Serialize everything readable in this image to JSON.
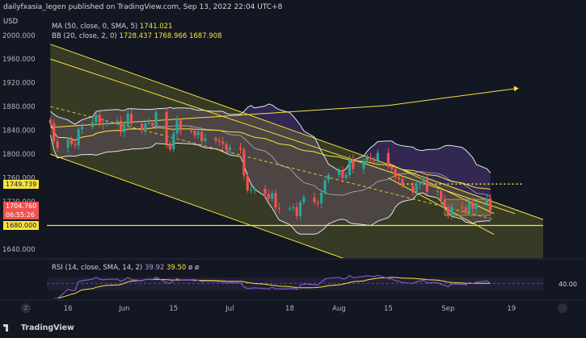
{
  "header": {
    "publisher_line": "dailyfxasia_legen published on TradingView.com, Sep 13, 2022 22:04 UTC+8",
    "currency": "USD"
  },
  "legends": {
    "ma": {
      "label": "MA (50, close, 0, SMA, 5)",
      "value": "1741.021"
    },
    "bb": {
      "label": "BB (20, close, 2, 0)",
      "values": [
        "1728.437",
        "1768.966",
        "1687.908"
      ]
    },
    "rsi": {
      "label": "RSI (14, close, SMA, 14, 2)",
      "values": [
        "39.92",
        "39.50",
        "ø",
        "ø"
      ]
    }
  },
  "price_tags": {
    "resistance": "1749.739",
    "current": "1704.760",
    "countdown": "06:55:26",
    "support": "1680.000",
    "rsi_level": "40.00"
  },
  "footer": {
    "brand": "TradingView",
    "z_button": "Z"
  },
  "colors": {
    "background": "#131722",
    "up": "#26a69a",
    "down": "#ef5350",
    "ma": "#f7e33f",
    "bb": "#e0e3eb",
    "bb_fill": "#5b3f8c",
    "channel": "#f7e33f",
    "rsi_line": "#7e57c2"
  },
  "chart_data": {
    "type": "line",
    "title": "",
    "xlabel": "",
    "ylabel": "USD",
    "ylim": [
      1625,
      2035
    ],
    "y_ticks": [
      1640,
      1680,
      1720,
      1760,
      1800,
      1840,
      1880,
      1920,
      1960,
      2000
    ],
    "y_tick_labels": [
      "1640.000",
      "1680.000",
      "1720.000",
      "1760.000",
      "1800.000",
      "1840.000",
      "1880.000",
      "1920.000",
      "1960.000",
      "2000.000"
    ],
    "x_ticks": [
      {
        "label": "16",
        "date": "2022-05-16"
      },
      {
        "label": "Jun",
        "date": "2022-06-01"
      },
      {
        "label": "15",
        "date": "2022-06-15"
      },
      {
        "label": "Jul",
        "date": "2022-07-01"
      },
      {
        "label": "18",
        "date": "2022-07-18"
      },
      {
        "label": "Aug",
        "date": "2022-08-01"
      },
      {
        "label": "15",
        "date": "2022-08-15"
      },
      {
        "label": "Sep",
        "date": "2022-09-01"
      },
      {
        "label": "19",
        "date": "2022-09-19"
      }
    ],
    "xlim": [
      "2022-05-10",
      "2022-09-28"
    ],
    "close_series": [
      [
        "2022-05-11",
        1852
      ],
      [
        "2022-05-12",
        1822
      ],
      [
        "2022-05-13",
        1811
      ],
      [
        "2022-05-16",
        1824
      ],
      [
        "2022-05-17",
        1817
      ],
      [
        "2022-05-18",
        1815
      ],
      [
        "2022-05-19",
        1842
      ],
      [
        "2022-05-20",
        1846
      ],
      [
        "2022-05-23",
        1854
      ],
      [
        "2022-05-24",
        1866
      ],
      [
        "2022-05-25",
        1853
      ],
      [
        "2022-05-26",
        1850
      ],
      [
        "2022-05-27",
        1853
      ],
      [
        "2022-05-30",
        1856
      ],
      [
        "2022-05-31",
        1837
      ],
      [
        "2022-06-01",
        1848
      ],
      [
        "2022-06-02",
        1868
      ],
      [
        "2022-06-03",
        1851
      ],
      [
        "2022-06-06",
        1841
      ],
      [
        "2022-06-07",
        1852
      ],
      [
        "2022-06-08",
        1853
      ],
      [
        "2022-06-09",
        1848
      ],
      [
        "2022-06-10",
        1871
      ],
      [
        "2022-06-13",
        1818
      ],
      [
        "2022-06-14",
        1808
      ],
      [
        "2022-06-15",
        1835
      ],
      [
        "2022-06-16",
        1857
      ],
      [
        "2022-06-17",
        1840
      ],
      [
        "2022-06-20",
        1839
      ],
      [
        "2022-06-21",
        1832
      ],
      [
        "2022-06-22",
        1838
      ],
      [
        "2022-06-23",
        1822
      ],
      [
        "2022-06-24",
        1827
      ],
      [
        "2022-06-27",
        1823
      ],
      [
        "2022-06-28",
        1821
      ],
      [
        "2022-06-29",
        1817
      ],
      [
        "2022-06-30",
        1807
      ],
      [
        "2022-07-01",
        1811
      ],
      [
        "2022-07-04",
        1808
      ],
      [
        "2022-07-05",
        1764
      ],
      [
        "2022-07-06",
        1739
      ],
      [
        "2022-07-07",
        1740
      ],
      [
        "2022-07-08",
        1742
      ],
      [
        "2022-07-11",
        1733
      ],
      [
        "2022-07-12",
        1725
      ],
      [
        "2022-07-13",
        1735
      ],
      [
        "2022-07-14",
        1710
      ],
      [
        "2022-07-15",
        1708
      ],
      [
        "2022-07-18",
        1709
      ],
      [
        "2022-07-19",
        1711
      ],
      [
        "2022-07-20",
        1696
      ],
      [
        "2022-07-21",
        1719
      ],
      [
        "2022-07-22",
        1727
      ],
      [
        "2022-07-25",
        1719
      ],
      [
        "2022-07-26",
        1717
      ],
      [
        "2022-07-27",
        1735
      ],
      [
        "2022-07-28",
        1756
      ],
      [
        "2022-07-29",
        1765
      ],
      [
        "2022-08-01",
        1772
      ],
      [
        "2022-08-02",
        1760
      ],
      [
        "2022-08-03",
        1765
      ],
      [
        "2022-08-04",
        1792
      ],
      [
        "2022-08-05",
        1775
      ],
      [
        "2022-08-08",
        1789
      ],
      [
        "2022-08-09",
        1794
      ],
      [
        "2022-08-10",
        1792
      ],
      [
        "2022-08-11",
        1789
      ],
      [
        "2022-08-12",
        1802
      ],
      [
        "2022-08-15",
        1779
      ],
      [
        "2022-08-16",
        1775
      ],
      [
        "2022-08-17",
        1761
      ],
      [
        "2022-08-18",
        1758
      ],
      [
        "2022-08-19",
        1747
      ],
      [
        "2022-08-22",
        1736
      ],
      [
        "2022-08-23",
        1749
      ],
      [
        "2022-08-24",
        1751
      ],
      [
        "2022-08-25",
        1758
      ],
      [
        "2022-08-26",
        1737
      ],
      [
        "2022-08-29",
        1738
      ],
      [
        "2022-08-30",
        1723
      ],
      [
        "2022-08-31",
        1711
      ],
      [
        "2022-09-01",
        1697
      ],
      [
        "2022-09-02",
        1712
      ],
      [
        "2022-09-05",
        1710
      ],
      [
        "2022-09-06",
        1702
      ],
      [
        "2022-09-07",
        1718
      ],
      [
        "2022-09-08",
        1708
      ],
      [
        "2022-09-09",
        1717
      ],
      [
        "2022-09-12",
        1725
      ],
      [
        "2022-09-13",
        1705
      ]
    ],
    "rsi_range": [
      0,
      100
    ],
    "rsi_levels": [
      40
    ],
    "horizontal_levels": [
      1749.739,
      1680.0
    ],
    "grid": false,
    "legend": "top-left"
  }
}
